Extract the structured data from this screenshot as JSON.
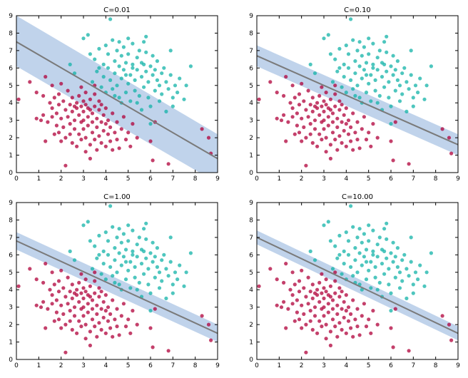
{
  "figure": {
    "background": "#ffffff",
    "class_colors": {
      "class_0": "#b0003a",
      "class_1": "#13b3a8"
    },
    "line_color": "#7a7a7a",
    "band_color": "#b0c8e6"
  },
  "chart_data": [
    {
      "type": "scatter",
      "title": "C=0.01",
      "xlim": [
        0,
        9
      ],
      "ylim": [
        0,
        9
      ],
      "xticks": [
        0,
        1,
        2,
        3,
        4,
        5,
        6,
        7,
        8,
        9
      ],
      "yticks": [
        0,
        1,
        2,
        3,
        4,
        5,
        6,
        7,
        8,
        9
      ],
      "grid": false,
      "decision_line": {
        "x": [
          0,
          9
        ],
        "y": [
          7.5,
          0.8
        ]
      },
      "margin_band": {
        "upper": [
          9.0,
          2.2
        ],
        "lower": [
          6.1,
          -0.6
        ]
      }
    },
    {
      "type": "scatter",
      "title": "C=0.10",
      "xlim": [
        0,
        9
      ],
      "ylim": [
        0,
        9
      ],
      "xticks": [
        0,
        1,
        2,
        3,
        4,
        5,
        6,
        7,
        8,
        9
      ],
      "yticks": [
        0,
        1,
        2,
        3,
        4,
        5,
        6,
        7,
        8,
        9
      ],
      "grid": false,
      "decision_line": {
        "x": [
          0,
          9
        ],
        "y": [
          6.7,
          1.6
        ]
      },
      "margin_band": {
        "upper": [
          7.3,
          2.2
        ],
        "lower": [
          6.1,
          1.0
        ]
      }
    },
    {
      "type": "scatter",
      "title": "C=1.00",
      "xlim": [
        0,
        9
      ],
      "ylim": [
        0,
        9
      ],
      "xticks": [
        0,
        1,
        2,
        3,
        4,
        5,
        6,
        7,
        8,
        9
      ],
      "yticks": [
        0,
        1,
        2,
        3,
        4,
        5,
        6,
        7,
        8,
        9
      ],
      "grid": false,
      "decision_line": {
        "x": [
          0,
          9
        ],
        "y": [
          6.8,
          1.5
        ]
      },
      "margin_band": {
        "upper": [
          7.3,
          2.0
        ],
        "lower": [
          6.3,
          1.0
        ]
      }
    },
    {
      "type": "scatter",
      "title": "C=10.00",
      "xlim": [
        0,
        9
      ],
      "ylim": [
        0,
        9
      ],
      "xticks": [
        0,
        1,
        2,
        3,
        4,
        5,
        6,
        7,
        8,
        9
      ],
      "yticks": [
        0,
        1,
        2,
        3,
        4,
        5,
        6,
        7,
        8,
        9
      ],
      "grid": false,
      "decision_line": {
        "x": [
          0,
          9
        ],
        "y": [
          7.0,
          1.5
        ]
      },
      "margin_band": {
        "upper": [
          7.4,
          1.9
        ],
        "lower": [
          6.6,
          1.1
        ]
      }
    }
  ],
  "scatter_points": {
    "class_0": [
      [
        0.1,
        4.2
      ],
      [
        0.6,
        5.2
      ],
      [
        0.9,
        4.6
      ],
      [
        0.9,
        3.1
      ],
      [
        1.1,
        3.0
      ],
      [
        1.2,
        4.4
      ],
      [
        1.2,
        3.3
      ],
      [
        1.3,
        5.5
      ],
      [
        1.4,
        2.9
      ],
      [
        1.5,
        4.0
      ],
      [
        1.6,
        3.7
      ],
      [
        1.6,
        5.0
      ],
      [
        1.7,
        4.3
      ],
      [
        1.7,
        2.2
      ],
      [
        1.8,
        3.4
      ],
      [
        1.8,
        2.7
      ],
      [
        1.9,
        3.9
      ],
      [
        1.9,
        4.5
      ],
      [
        1.9,
        2.3
      ],
      [
        2.0,
        3.1
      ],
      [
        2.0,
        5.1
      ],
      [
        2.1,
        2.6
      ],
      [
        2.1,
        4.1
      ],
      [
        2.2,
        3.6
      ],
      [
        2.2,
        0.4
      ],
      [
        2.2,
        2.0
      ],
      [
        2.3,
        4.7
      ],
      [
        2.3,
        3.2
      ],
      [
        2.4,
        2.8
      ],
      [
        2.4,
        3.9
      ],
      [
        2.5,
        1.7
      ],
      [
        2.5,
        4.3
      ],
      [
        2.5,
        3.5
      ],
      [
        2.6,
        2.5
      ],
      [
        2.6,
        3.0
      ],
      [
        2.7,
        4.0
      ],
      [
        2.7,
        1.5
      ],
      [
        2.7,
        3.7
      ],
      [
        2.8,
        2.2
      ],
      [
        2.8,
        4.4
      ],
      [
        2.8,
        3.3
      ],
      [
        2.9,
        2.9
      ],
      [
        2.9,
        3.8
      ],
      [
        2.9,
        1.9
      ],
      [
        3.0,
        4.1
      ],
      [
        3.0,
        3.5
      ],
      [
        3.0,
        2.5
      ],
      [
        3.1,
        3.9
      ],
      [
        3.1,
        2.0
      ],
      [
        3.1,
        1.2
      ],
      [
        3.1,
        4.6
      ],
      [
        3.2,
        3.2
      ],
      [
        3.2,
        2.7
      ],
      [
        3.2,
        3.7
      ],
      [
        3.3,
        1.6
      ],
      [
        3.3,
        4.2
      ],
      [
        3.3,
        0.8
      ],
      [
        3.4,
        3.4
      ],
      [
        3.4,
        2.3
      ],
      [
        3.4,
        2.9
      ],
      [
        3.5,
        3.8
      ],
      [
        3.5,
        1.9
      ],
      [
        3.5,
        4.5
      ],
      [
        3.6,
        3.1
      ],
      [
        3.6,
        2.6
      ],
      [
        3.6,
        1.3
      ],
      [
        3.7,
        3.6
      ],
      [
        3.7,
        2.1
      ],
      [
        3.8,
        2.9
      ],
      [
        3.8,
        3.9
      ],
      [
        3.8,
        1.7
      ],
      [
        3.9,
        3.3
      ],
      [
        3.9,
        2.4
      ],
      [
        4.0,
        2.8
      ],
      [
        4.0,
        1.5
      ],
      [
        4.0,
        3.7
      ],
      [
        4.1,
        2.2
      ],
      [
        4.1,
        3.0
      ],
      [
        4.2,
        1.8
      ],
      [
        4.2,
        2.6
      ],
      [
        4.3,
        3.4
      ],
      [
        4.3,
        1.3
      ],
      [
        4.4,
        2.3
      ],
      [
        4.5,
        1.9
      ],
      [
        4.5,
        2.9
      ],
      [
        4.6,
        1.4
      ],
      [
        4.7,
        2.5
      ],
      [
        4.8,
        3.2
      ],
      [
        4.9,
        1.9
      ],
      [
        5.0,
        2.3
      ],
      [
        5.1,
        1.5
      ],
      [
        5.2,
        2.8
      ],
      [
        5.4,
        2.0
      ],
      [
        6.0,
        1.8
      ],
      [
        6.1,
        0.7
      ],
      [
        6.2,
        2.9
      ],
      [
        6.8,
        0.5
      ],
      [
        8.3,
        2.5
      ],
      [
        8.6,
        2.0
      ],
      [
        8.7,
        1.1
      ],
      [
        2.6,
        3.8
      ],
      [
        3.0,
        3.0
      ],
      [
        2.4,
        2.2
      ],
      [
        3.3,
        3.6
      ],
      [
        2.0,
        1.8
      ],
      [
        1.6,
        3.2
      ],
      [
        3.7,
        4.1
      ],
      [
        2.9,
        4.9
      ],
      [
        3.5,
        5.0
      ],
      [
        1.3,
        1.8
      ]
    ],
    "class_1": [
      [
        2.4,
        6.2
      ],
      [
        2.6,
        5.7
      ],
      [
        3.0,
        7.7
      ],
      [
        3.2,
        7.9
      ],
      [
        3.3,
        6.8
      ],
      [
        3.4,
        5.2
      ],
      [
        3.5,
        6.5
      ],
      [
        3.6,
        5.8
      ],
      [
        3.7,
        7.1
      ],
      [
        3.8,
        4.9
      ],
      [
        3.9,
        6.2
      ],
      [
        3.9,
        5.5
      ],
      [
        4.0,
        7.3
      ],
      [
        4.0,
        4.6
      ],
      [
        4.1,
        6.0
      ],
      [
        4.1,
        6.8
      ],
      [
        4.2,
        5.3
      ],
      [
        4.2,
        8.8
      ],
      [
        4.3,
        7.6
      ],
      [
        4.3,
        4.8
      ],
      [
        4.4,
        6.4
      ],
      [
        4.4,
        5.7
      ],
      [
        4.5,
        7.0
      ],
      [
        4.5,
        5.0
      ],
      [
        4.6,
        6.1
      ],
      [
        4.6,
        4.3
      ],
      [
        4.7,
        6.7
      ],
      [
        4.7,
        5.4
      ],
      [
        4.8,
        7.2
      ],
      [
        4.8,
        5.9
      ],
      [
        4.9,
        4.6
      ],
      [
        4.9,
        6.3
      ],
      [
        5.0,
        5.1
      ],
      [
        5.0,
        7.7
      ],
      [
        5.0,
        6.8
      ],
      [
        5.1,
        5.6
      ],
      [
        5.1,
        4.1
      ],
      [
        5.2,
        6.2
      ],
      [
        5.2,
        7.4
      ],
      [
        5.3,
        5.3
      ],
      [
        5.3,
        4.7
      ],
      [
        5.4,
        6.6
      ],
      [
        5.4,
        5.9
      ],
      [
        5.5,
        4.4
      ],
      [
        5.5,
        7.0
      ],
      [
        5.6,
        5.5
      ],
      [
        5.6,
        6.3
      ],
      [
        5.7,
        4.9
      ],
      [
        5.7,
        7.5
      ],
      [
        5.8,
        5.8
      ],
      [
        5.8,
        6.9
      ],
      [
        5.9,
        4.3
      ],
      [
        5.9,
        5.2
      ],
      [
        6.0,
        6.1
      ],
      [
        6.0,
        3.8
      ],
      [
        6.1,
        5.6
      ],
      [
        6.1,
        6.7
      ],
      [
        6.2,
        4.7
      ],
      [
        6.2,
        5.9
      ],
      [
        6.3,
        5.3
      ],
      [
        6.3,
        6.4
      ],
      [
        6.4,
        4.1
      ],
      [
        6.4,
        5.0
      ],
      [
        6.5,
        5.7
      ],
      [
        6.5,
        4.5
      ],
      [
        6.6,
        6.0
      ],
      [
        6.7,
        5.2
      ],
      [
        6.7,
        3.5
      ],
      [
        6.8,
        4.8
      ],
      [
        6.9,
        5.6
      ],
      [
        7.0,
        4.3
      ],
      [
        7.0,
        3.8
      ],
      [
        7.1,
        5.0
      ],
      [
        7.2,
        4.6
      ],
      [
        7.3,
        5.4
      ],
      [
        7.5,
        4.2
      ],
      [
        7.6,
        5.0
      ],
      [
        7.8,
        6.1
      ],
      [
        6.0,
        2.8
      ],
      [
        5.6,
        3.6
      ],
      [
        4.7,
        4.0
      ],
      [
        5.4,
        4.0
      ],
      [
        4.4,
        4.4
      ],
      [
        5.8,
        7.8
      ],
      [
        5.2,
        6.0
      ],
      [
        4.9,
        5.6
      ],
      [
        5.7,
        6.2
      ],
      [
        6.9,
        7.0
      ],
      [
        3.7,
        6.0
      ],
      [
        4.6,
        7.5
      ]
    ]
  }
}
